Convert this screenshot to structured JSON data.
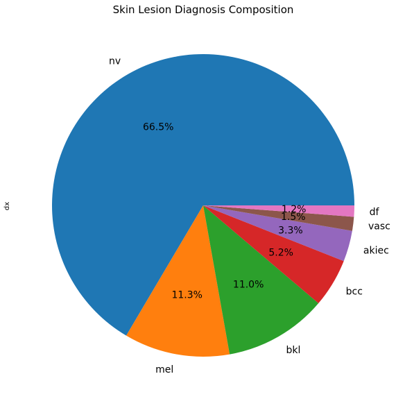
{
  "chart_data": {
    "type": "pie",
    "title": "Skin Lesion Diagnosis Composition",
    "ylabel": "dx",
    "categories": [
      "nv",
      "mel",
      "bkl",
      "bcc",
      "akiec",
      "vasc",
      "df"
    ],
    "values": [
      66.5,
      11.3,
      11.0,
      5.2,
      3.3,
      1.5,
      1.2
    ],
    "value_labels": [
      "66.5%",
      "11.3%",
      "11.0%",
      "5.2%",
      "3.3%",
      "1.5%",
      "1.2%"
    ],
    "colors": [
      "#1f77b4",
      "#ff7f0e",
      "#2ca02c",
      "#d62728",
      "#9467bd",
      "#8c564b",
      "#e377c2"
    ],
    "start_angle": 0,
    "direction": "counterclockwise",
    "legend": "none"
  }
}
